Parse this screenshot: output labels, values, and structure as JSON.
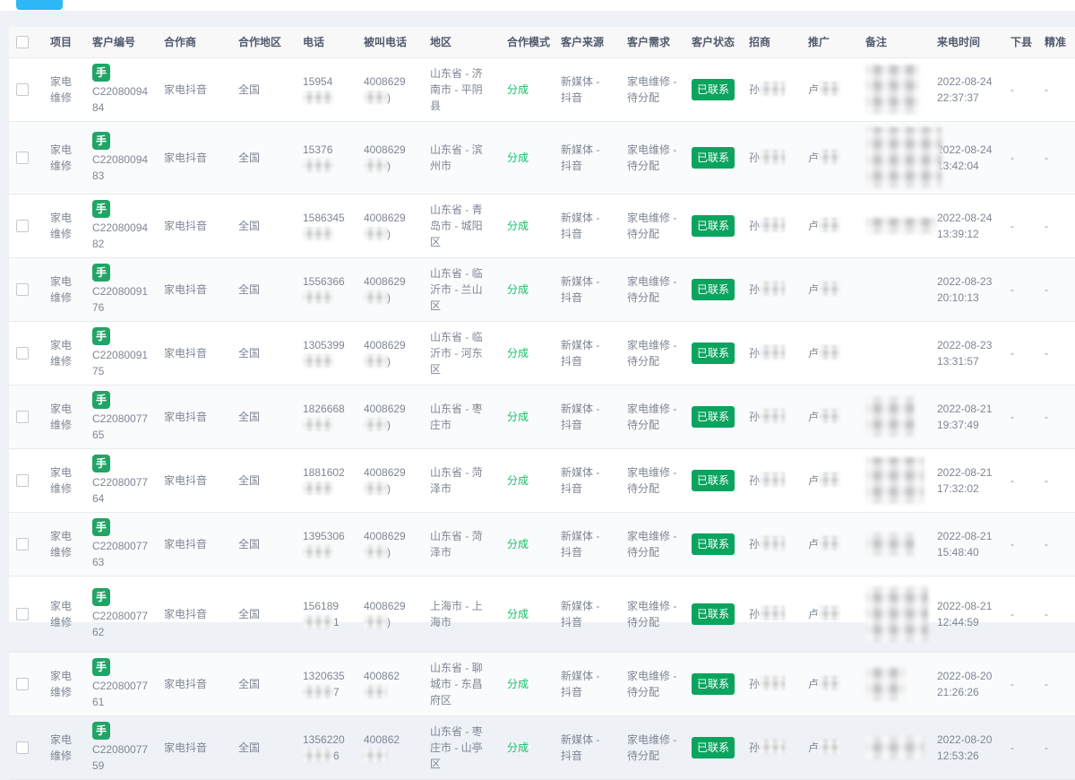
{
  "page": {
    "top_button_color": "#2db7f5",
    "accent_green": "#19be6b",
    "badge_green": "#0ba45f"
  },
  "table": {
    "headers": [
      "项目",
      "客户编号",
      "合作商",
      "合作地区",
      "电话",
      "被叫电话",
      "地区",
      "合作模式",
      "客户来源",
      "客户需求",
      "客户状态",
      "招商",
      "推广",
      "备注",
      "来电时间",
      "下县",
      "精准"
    ],
    "rows": [
      {
        "project": "家电维修",
        "tag": "手",
        "customer_no": "C2208009484",
        "partner": "家电抖音",
        "coop_area": "全国",
        "phone_prefix": "15954",
        "phone_suffix": "",
        "called_prefix": "4008629",
        "called_suffix": ")",
        "region": "山东省 - 济南市 - 平阴县",
        "coop_mode": "分成",
        "source": "新媒体 - 抖音",
        "demand": "家电维修 - 待分配",
        "status": "已联系",
        "agent_prefix": "孙",
        "promo_prefix": "卢",
        "call_time": "2022-08-24 22:37:37",
        "xiaxian": "-",
        "jingzhun": "-",
        "remark_blur": [
          60,
          55
        ]
      },
      {
        "project": "家电维修",
        "tag": "手",
        "customer_no": "C2208009483",
        "partner": "家电抖音",
        "coop_area": "全国",
        "phone_prefix": "15376",
        "phone_suffix": "",
        "called_prefix": "4008629",
        "called_suffix": ")",
        "region": "山东省 - 滨州市",
        "coop_mode": "分成",
        "source": "新媒体 - 抖音",
        "demand": "家电维修 - 待分配",
        "status": "已联系",
        "agent_prefix": "孙",
        "promo_prefix": "卢",
        "call_time": "2022-08-24 13:42:04",
        "xiaxian": "-",
        "jingzhun": "-",
        "remark_blur": [
          85,
          68
        ]
      },
      {
        "project": "家电维修",
        "tag": "手",
        "customer_no": "C2208009482",
        "partner": "家电抖音",
        "coop_area": "全国",
        "phone_prefix": "1586345",
        "phone_suffix": "",
        "called_prefix": "4008629",
        "called_suffix": ")",
        "region": "山东省 - 青岛市 - 城阳区",
        "coop_mode": "分成",
        "source": "新媒体 - 抖音",
        "demand": "家电维修 - 待分配",
        "status": "已联系",
        "agent_prefix": "孙",
        "promo_prefix": "卢",
        "call_time": "2022-08-24 13:39:12",
        "xiaxian": "-",
        "jingzhun": "-",
        "remark_blur": [
          80,
          18
        ]
      },
      {
        "project": "家电维修",
        "tag": "手",
        "customer_no": "C2208009176",
        "partner": "家电抖音",
        "coop_area": "全国",
        "phone_prefix": "1556366",
        "phone_suffix": "",
        "called_prefix": "4008629",
        "called_suffix": ")",
        "region": "山东省 - 临沂市 - 兰山区",
        "coop_mode": "分成",
        "source": "新媒体 - 抖音",
        "demand": "家电维修 - 待分配",
        "status": "已联系",
        "agent_prefix": "孙",
        "promo_prefix": "卢",
        "call_time": "2022-08-23 20:10:13",
        "xiaxian": "-",
        "jingzhun": "-",
        "remark_blur": null
      },
      {
        "project": "家电维修",
        "tag": "手",
        "customer_no": "C2208009175",
        "partner": "家电抖音",
        "coop_area": "全国",
        "phone_prefix": "1305399",
        "phone_suffix": "",
        "called_prefix": "4008629",
        "called_suffix": ")",
        "region": "山东省 - 临沂市 - 河东区",
        "coop_mode": "分成",
        "source": "新媒体 - 抖音",
        "demand": "家电维修 - 待分配",
        "status": "已联系",
        "agent_prefix": "孙",
        "promo_prefix": "卢",
        "call_time": "2022-08-23 13:31:57",
        "xiaxian": "-",
        "jingzhun": "-",
        "remark_blur": null
      },
      {
        "project": "家电维修",
        "tag": "手",
        "customer_no": "C2208007765",
        "partner": "家电抖音",
        "coop_area": "全国",
        "phone_prefix": "1826668",
        "phone_suffix": "",
        "called_prefix": "4008629",
        "called_suffix": ")",
        "region": "山东省 - 枣庄市",
        "coop_mode": "分成",
        "source": "新媒体 - 抖音",
        "demand": "家电维修 - 待分配",
        "status": "已联系",
        "agent_prefix": "孙",
        "promo_prefix": "卢",
        "call_time": "2022-08-21 19:37:49",
        "xiaxian": "-",
        "jingzhun": "-",
        "remark_blur": [
          55,
          45
        ]
      },
      {
        "project": "家电维修",
        "tag": "手",
        "customer_no": "C2208007764",
        "partner": "家电抖音",
        "coop_area": "全国",
        "phone_prefix": "1881602",
        "phone_suffix": "",
        "called_prefix": "4008629",
        "called_suffix": ")",
        "region": "山东省 - 菏泽市",
        "coop_mode": "分成",
        "source": "新媒体 - 抖音",
        "demand": "家电维修 - 待分配",
        "status": "已联系",
        "agent_prefix": "孙",
        "promo_prefix": "卢",
        "call_time": "2022-08-21 17:32:02",
        "xiaxian": "-",
        "jingzhun": "-",
        "remark_blur": [
          65,
          52
        ]
      },
      {
        "project": "家电维修",
        "tag": "手",
        "customer_no": "C2208007763",
        "partner": "家电抖音",
        "coop_area": "全国",
        "phone_prefix": "1395306",
        "phone_suffix": "",
        "called_prefix": "4008629",
        "called_suffix": ")",
        "region": "山东省 - 菏泽市",
        "coop_mode": "分成",
        "source": "新媒体 - 抖音",
        "demand": "家电维修 - 待分配",
        "status": "已联系",
        "agent_prefix": "孙",
        "promo_prefix": "卢",
        "call_time": "2022-08-21 15:48:40",
        "xiaxian": "-",
        "jingzhun": "-",
        "remark_blur": [
          55,
          26
        ]
      },
      {
        "project": "家电维修",
        "tag": "手",
        "customer_no": "C2208007762",
        "partner": "家电抖音",
        "coop_area": "全国",
        "phone_prefix": "156189",
        "phone_suffix": "1",
        "called_prefix": "4008629",
        "called_suffix": ")",
        "region": "上海市 - 上海市",
        "coop_mode": "分成",
        "source": "新媒体 - 抖音",
        "demand": "家电维修 - 待分配",
        "status": "已联系",
        "agent_prefix": "孙",
        "promo_prefix": "卢",
        "call_time": "2022-08-21 12:44:59",
        "xiaxian": "-",
        "jingzhun": "-",
        "remark_blur": [
          70,
          62
        ]
      },
      {
        "project": "家电维修",
        "tag": "手",
        "customer_no": "C2208007761",
        "partner": "家电抖音",
        "coop_area": "全国",
        "phone_prefix": "1320635",
        "phone_suffix": "7",
        "called_prefix": "400862",
        "called_suffix": "",
        "region": "山东省 - 聊城市 - 东昌府区",
        "coop_mode": "分成",
        "source": "新媒体 - 抖音",
        "demand": "家电维修 - 待分配",
        "status": "已联系",
        "agent_prefix": "孙",
        "promo_prefix": "卢",
        "call_time": "2022-08-20 21:26:26",
        "xiaxian": "-",
        "jingzhun": "-",
        "remark_blur": [
          45,
          38
        ]
      },
      {
        "project": "家电维修",
        "tag": "手",
        "customer_no": "C2208007759",
        "partner": "家电抖音",
        "coop_area": "全国",
        "phone_prefix": "1356220",
        "phone_suffix": "6",
        "called_prefix": "400862",
        "called_suffix": "",
        "region": "山东省 - 枣庄市 - 山亭区",
        "coop_mode": "分成",
        "source": "新媒体 - 抖音",
        "demand": "家电维修 - 待分配",
        "status": "已联系",
        "agent_prefix": "孙",
        "promo_prefix": "卢",
        "call_time": "2022-08-20 12:53:26",
        "xiaxian": "-",
        "jingzhun": "-",
        "remark_blur": [
          65,
          26
        ]
      }
    ]
  }
}
